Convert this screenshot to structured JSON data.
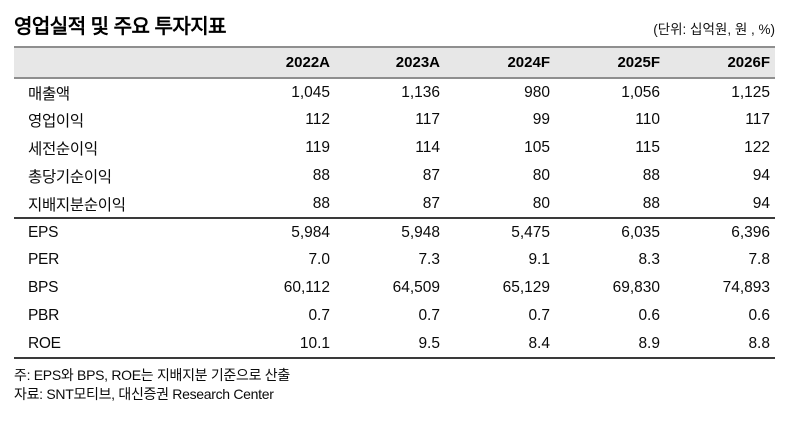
{
  "header": {
    "title": "영업실적 및 주요 투자지표",
    "unit_note": "(단위: 십억원, 원 , %)"
  },
  "table": {
    "columns": [
      "",
      "2022A",
      "2023A",
      "2024F",
      "2025F",
      "2026F"
    ],
    "rows": [
      {
        "label": "매출액",
        "values": [
          "1,045",
          "1,136",
          "980",
          "1,056",
          "1,125"
        ]
      },
      {
        "label": "영업이익",
        "values": [
          "112",
          "117",
          "99",
          "110",
          "117"
        ]
      },
      {
        "label": "세전순이익",
        "values": [
          "119",
          "114",
          "105",
          "115",
          "122"
        ]
      },
      {
        "label": "총당기순이익",
        "values": [
          "88",
          "87",
          "80",
          "88",
          "94"
        ]
      },
      {
        "label": "지배지분순이익",
        "values": [
          "88",
          "87",
          "80",
          "88",
          "94"
        ]
      },
      {
        "label": "EPS",
        "values": [
          "5,984",
          "5,948",
          "5,475",
          "6,035",
          "6,396"
        ]
      },
      {
        "label": "PER",
        "values": [
          "7.0",
          "7.3",
          "9.1",
          "8.3",
          "7.8"
        ]
      },
      {
        "label": "BPS",
        "values": [
          "60,112",
          "64,509",
          "65,129",
          "69,830",
          "74,893"
        ]
      },
      {
        "label": "PBR",
        "values": [
          "0.7",
          "0.7",
          "0.7",
          "0.6",
          "0.6"
        ]
      },
      {
        "label": "ROE",
        "values": [
          "10.1",
          "9.5",
          "8.4",
          "8.9",
          "8.8"
        ]
      }
    ]
  },
  "notes": [
    "주: EPS와 BPS, ROE는 지배지분 기준으로 산출",
    "자료: SNT모티브, 대신증권 Research Center"
  ],
  "colors": {
    "header_bg": "#e7e7e7",
    "gray_line": "#8f8f8f",
    "dark_line": "#3a3a3a"
  }
}
